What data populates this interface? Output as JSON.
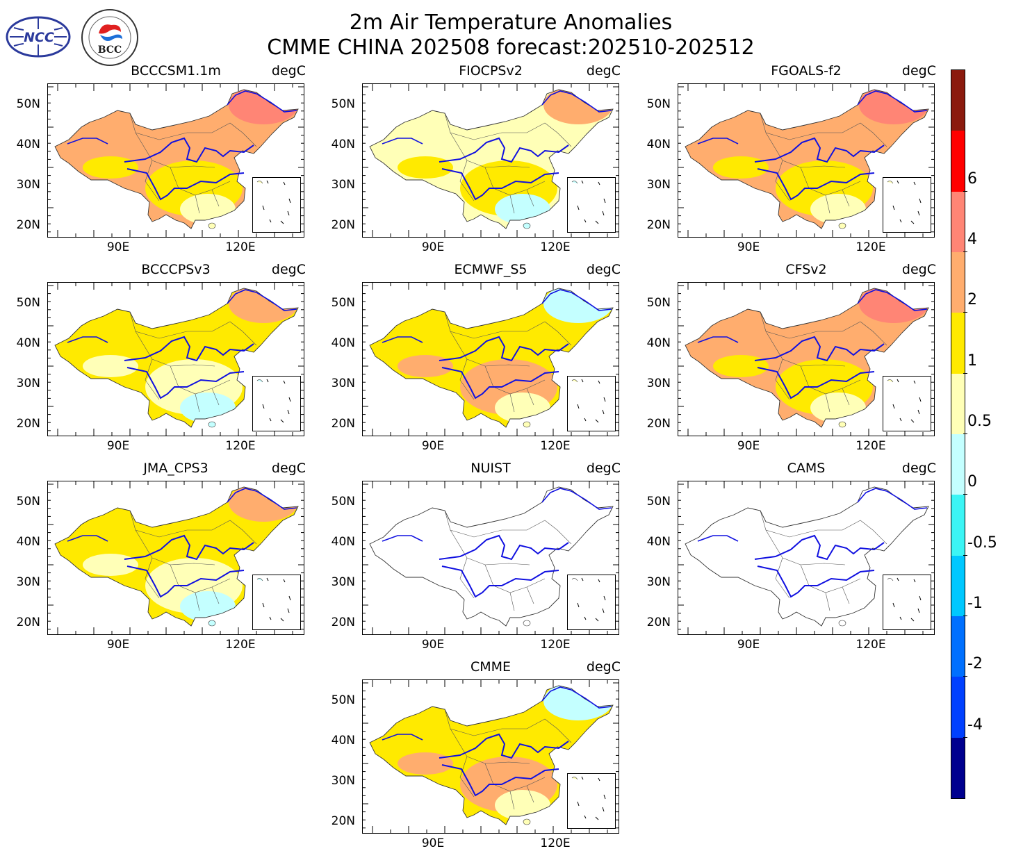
{
  "title_line1": "2m Air Temperature Anomalies",
  "title_line2": "CMME CHINA 202508 forecast:202510-202512",
  "logos": {
    "left_text": "NCC",
    "right_text": "BCC",
    "right_ring_text": "BEIJING CLIMATE CENTER"
  },
  "unit": "degC",
  "axes": {
    "y_ticks": [
      "50N",
      "40N",
      "30N",
      "20N"
    ],
    "x_ticks": [
      "90E",
      "120E"
    ]
  },
  "panels": [
    {
      "name": "BCCCSM1.1m",
      "palette": "warm"
    },
    {
      "name": "FIOCPSv2",
      "palette": "mild"
    },
    {
      "name": "FGOALS-f2",
      "palette": "warm"
    },
    {
      "name": "BCCCPSv3",
      "palette": "mixed"
    },
    {
      "name": "ECMWF_S5",
      "palette": "yellow"
    },
    {
      "name": "CFSv2",
      "palette": "warm"
    },
    {
      "name": "JMA_CPS3",
      "palette": "mixed"
    },
    {
      "name": "NUIST",
      "palette": "none"
    },
    {
      "name": "CAMS",
      "palette": "none"
    },
    {
      "name": "CMME",
      "palette": "yellow"
    }
  ],
  "colorbar": {
    "labels": [
      "6",
      "4",
      "2",
      "1",
      "0.5",
      "0",
      "-0.5",
      "-1",
      "-2",
      "-4"
    ],
    "colors": [
      "#8b1a0e",
      "#ff0000",
      "#ff8575",
      "#ffad6e",
      "#ffea00",
      "#ffffb7",
      "#c4ffff",
      "#3cf5f5",
      "#00c8ff",
      "#0070ff",
      "#0040ff",
      "#00008f"
    ]
  }
}
